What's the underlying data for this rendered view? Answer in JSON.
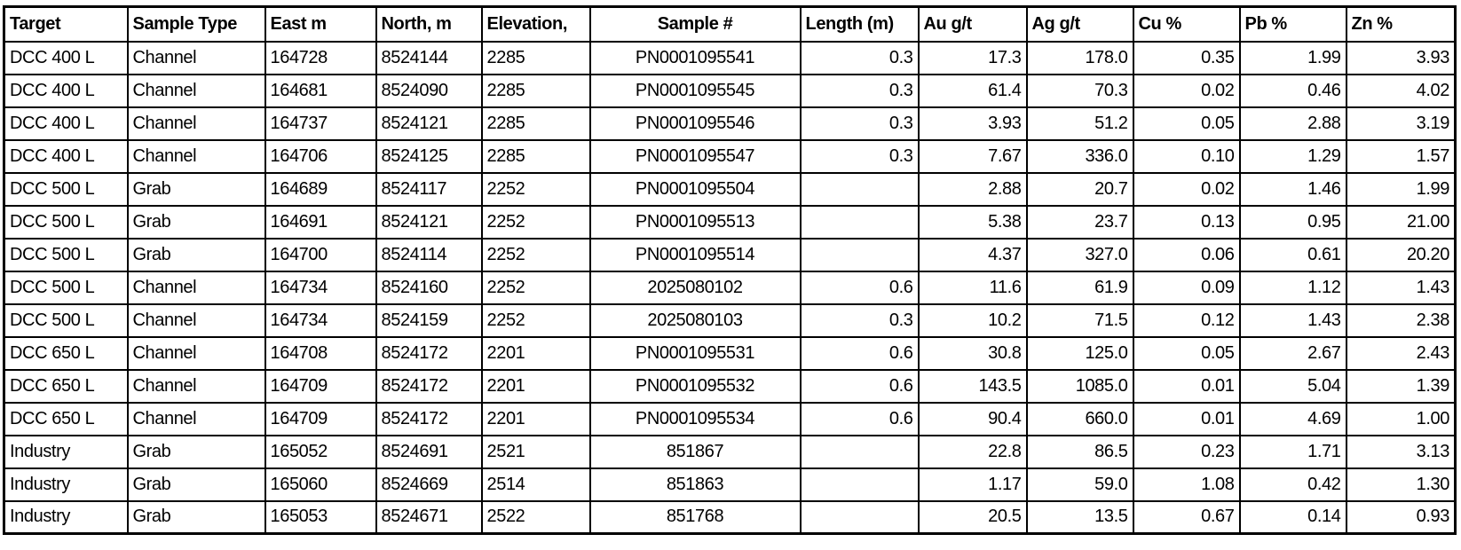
{
  "table": {
    "columns": [
      "Target",
      "Sample Type",
      "East m",
      "North, m",
      "Elevation,",
      "Sample #",
      "Length (m)",
      "Au g/t",
      "Ag g/t",
      "Cu %",
      "Pb %",
      "Zn %"
    ],
    "rows": [
      [
        "DCC 400 L",
        "Channel",
        "164728",
        "8524144",
        "2285",
        "PN0001095541",
        "0.3",
        "17.3",
        "178.0",
        "0.35",
        "1.99",
        "3.93"
      ],
      [
        "DCC 400 L",
        "Channel",
        "164681",
        "8524090",
        "2285",
        "PN0001095545",
        "0.3",
        "61.4",
        "70.3",
        "0.02",
        "0.46",
        "4.02"
      ],
      [
        "DCC 400 L",
        "Channel",
        "164737",
        "8524121",
        "2285",
        "PN0001095546",
        "0.3",
        "3.93",
        "51.2",
        "0.05",
        "2.88",
        "3.19"
      ],
      [
        "DCC 400 L",
        "Channel",
        "164706",
        "8524125",
        "2285",
        "PN0001095547",
        "0.3",
        "7.67",
        "336.0",
        "0.10",
        "1.29",
        "1.57"
      ],
      [
        "DCC 500 L",
        "Grab",
        "164689",
        "8524117",
        "2252",
        "PN0001095504",
        "",
        "2.88",
        "20.7",
        "0.02",
        "1.46",
        "1.99"
      ],
      [
        "DCC 500 L",
        "Grab",
        "164691",
        "8524121",
        "2252",
        "PN0001095513",
        "",
        "5.38",
        "23.7",
        "0.13",
        "0.95",
        "21.00"
      ],
      [
        "DCC 500 L",
        "Grab",
        "164700",
        "8524114",
        "2252",
        "PN0001095514",
        "",
        "4.37",
        "327.0",
        "0.06",
        "0.61",
        "20.20"
      ],
      [
        "DCC 500 L",
        "Channel",
        "164734",
        "8524160",
        "2252",
        "2025080102",
        "0.6",
        "11.6",
        "61.9",
        "0.09",
        "1.12",
        "1.43"
      ],
      [
        "DCC 500 L",
        "Channel",
        "164734",
        "8524159",
        "2252",
        "2025080103",
        "0.3",
        "10.2",
        "71.5",
        "0.12",
        "1.43",
        "2.38"
      ],
      [
        "DCC 650 L",
        "Channel",
        "164708",
        "8524172",
        "2201",
        "PN0001095531",
        "0.6",
        "30.8",
        "125.0",
        "0.05",
        "2.67",
        "2.43"
      ],
      [
        "DCC 650 L",
        "Channel",
        "164709",
        "8524172",
        "2201",
        "PN0001095532",
        "0.6",
        "143.5",
        "1085.0",
        "0.01",
        "5.04",
        "1.39"
      ],
      [
        "DCC 650 L",
        "Channel",
        "164709",
        "8524172",
        "2201",
        "PN0001095534",
        "0.6",
        "90.4",
        "660.0",
        "0.01",
        "4.69",
        "1.00"
      ],
      [
        "Industry",
        "Grab",
        "165052",
        "8524691",
        "2521",
        "851867",
        "",
        "22.8",
        "86.5",
        "0.23",
        "1.71",
        "3.13"
      ],
      [
        "Industry",
        "Grab",
        "165060",
        "8524669",
        "2514",
        "851863",
        "",
        "1.17",
        "59.0",
        "1.08",
        "0.42",
        "1.30"
      ],
      [
        "Industry",
        "Grab",
        "165053",
        "8524671",
        "2522",
        "851768",
        "",
        "20.5",
        "13.5",
        "0.67",
        "0.14",
        "0.93"
      ]
    ]
  },
  "colors": {
    "border": "#000000",
    "background": "#ffffff",
    "text": "#000000"
  }
}
